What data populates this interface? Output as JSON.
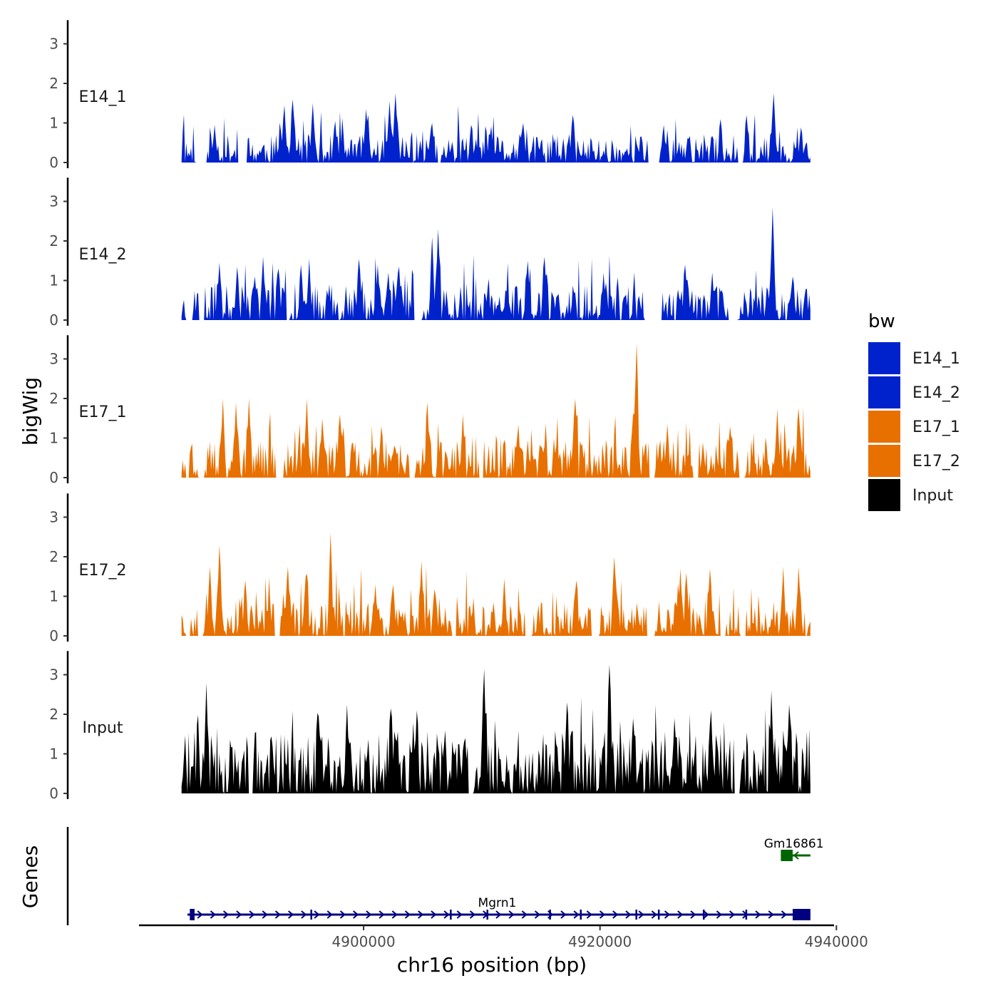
{
  "chart_data": {
    "type": "area",
    "title": "",
    "xlabel": "chr16 position (bp)",
    "ylabel_tracks": "bigWig",
    "ylabel_genes": "Genes",
    "chromosome": "chr16",
    "xlim": [
      4881000,
      4939800
    ],
    "signal_range": [
      4884600,
      4937800
    ],
    "x_ticks": [
      4900000,
      4920000,
      4940000
    ],
    "x_tick_labels": [
      "4900000",
      "4920000",
      "4940000"
    ],
    "ylim": [
      0,
      3.6
    ],
    "y_ticks": [
      0,
      1,
      2,
      3
    ],
    "y_tick_labels": [
      "0",
      "1",
      "2",
      "3"
    ],
    "legend": {
      "title": "bw",
      "position": "right",
      "entries": [
        {
          "label": "E14_1",
          "color": "#0022cc"
        },
        {
          "label": "E14_2",
          "color": "#0022cc"
        },
        {
          "label": "E17_1",
          "color": "#e87000"
        },
        {
          "label": "E17_2",
          "color": "#e87000"
        },
        {
          "label": "Input",
          "color": "#000000"
        }
      ]
    },
    "series": [
      {
        "name": "E14_1",
        "color": "#0022cc",
        "baseline": 0.45,
        "noise": 0.5,
        "seed": 11,
        "gaps": [
          [
            4885850,
            4886700
          ],
          [
            4889400,
            4890100
          ],
          [
            4906300,
            4906500
          ],
          [
            4924100,
            4925000
          ],
          [
            4931700,
            4932000
          ]
        ],
        "peaks": [
          [
            4887400,
            0.95
          ],
          [
            4893300,
            1.45
          ],
          [
            4894000,
            1.6
          ],
          [
            4895700,
            1.5
          ],
          [
            4897600,
            1.05
          ],
          [
            4900200,
            1.35
          ],
          [
            4902200,
            1.55
          ],
          [
            4902700,
            1.75
          ],
          [
            4905800,
            1.0
          ],
          [
            4909100,
            0.95
          ],
          [
            4913500,
            1.0
          ],
          [
            4917700,
            1.2
          ],
          [
            4924800,
            1.3
          ],
          [
            4925400,
            0.85
          ],
          [
            4930200,
            1.1
          ],
          [
            4932400,
            1.2
          ],
          [
            4934700,
            1.75
          ],
          [
            4937000,
            0.75
          ]
        ]
      },
      {
        "name": "E14_2",
        "color": "#0022cc",
        "baseline": 0.55,
        "noise": 0.6,
        "seed": 23,
        "gaps": [
          [
            4885000,
            4885500
          ],
          [
            4886100,
            4886500
          ],
          [
            4893500,
            4893700
          ],
          [
            4904300,
            4904900
          ],
          [
            4923800,
            4925200
          ],
          [
            4930900,
            4931600
          ]
        ],
        "peaks": [
          [
            4887800,
            1.45
          ],
          [
            4889300,
            1.35
          ],
          [
            4890800,
            1.1
          ],
          [
            4891500,
            1.6
          ],
          [
            4892800,
            1.3
          ],
          [
            4894700,
            1.4
          ],
          [
            4895400,
            1.55
          ],
          [
            4899600,
            1.55
          ],
          [
            4901200,
            1.4
          ],
          [
            4902100,
            1.2
          ],
          [
            4903000,
            1.35
          ],
          [
            4905800,
            2.1
          ],
          [
            4906300,
            2.3
          ],
          [
            4913900,
            1.5
          ],
          [
            4915300,
            1.6
          ],
          [
            4920300,
            1.2
          ],
          [
            4927200,
            1.4
          ],
          [
            4929500,
            1.2
          ],
          [
            4934600,
            2.85
          ],
          [
            4936300,
            1.1
          ]
        ]
      },
      {
        "name": "E17_1",
        "color": "#e87000",
        "baseline": 0.6,
        "noise": 0.6,
        "seed": 37,
        "gaps": [
          [
            4885000,
            4885200
          ],
          [
            4886200,
            4886500
          ],
          [
            4892600,
            4893200
          ],
          [
            4903900,
            4904300
          ],
          [
            4909900,
            4910100
          ],
          [
            4924200,
            4924600
          ],
          [
            4927900,
            4928300
          ],
          [
            4931800,
            4932200
          ]
        ],
        "peaks": [
          [
            4888100,
            2.0
          ],
          [
            4889200,
            1.9
          ],
          [
            4890300,
            2.0
          ],
          [
            4893000,
            2.05
          ],
          [
            4895200,
            2.0
          ],
          [
            4896500,
            1.5
          ],
          [
            4898000,
            1.6
          ],
          [
            4901500,
            1.3
          ],
          [
            4904000,
            1.6
          ],
          [
            4905400,
            1.9
          ],
          [
            4908400,
            1.6
          ],
          [
            4913100,
            1.25
          ],
          [
            4917900,
            2.0
          ],
          [
            4922800,
            1.6
          ],
          [
            4923100,
            3.4
          ],
          [
            4925700,
            1.35
          ],
          [
            4931000,
            1.3
          ],
          [
            4935000,
            1.75
          ],
          [
            4936800,
            1.75
          ]
        ]
      },
      {
        "name": "E17_2",
        "color": "#e87000",
        "baseline": 0.55,
        "noise": 0.6,
        "seed": 53,
        "gaps": [
          [
            4885000,
            4885300
          ],
          [
            4886000,
            4886300
          ],
          [
            4892500,
            4892900
          ],
          [
            4907500,
            4907800
          ],
          [
            4913700,
            4914200
          ],
          [
            4919300,
            4919900
          ],
          [
            4924000,
            4924600
          ],
          [
            4930200,
            4930600
          ],
          [
            4931900,
            4932300
          ]
        ],
        "peaks": [
          [
            4887000,
            1.75
          ],
          [
            4887800,
            2.3
          ],
          [
            4890000,
            1.4
          ],
          [
            4893600,
            1.75
          ],
          [
            4895100,
            1.5
          ],
          [
            4897200,
            2.6
          ],
          [
            4901000,
            1.3
          ],
          [
            4902500,
            1.3
          ],
          [
            4904900,
            1.9
          ],
          [
            4907800,
            1.35
          ],
          [
            4911900,
            1.45
          ],
          [
            4918000,
            1.4
          ],
          [
            4921200,
            2.0
          ],
          [
            4926800,
            1.7
          ],
          [
            4927300,
            1.6
          ],
          [
            4929300,
            1.7
          ],
          [
            4935500,
            1.75
          ],
          [
            4936800,
            1.75
          ]
        ]
      },
      {
        "name": "Input",
        "color": "#000000",
        "baseline": 1.0,
        "noise": 0.75,
        "seed": 71,
        "gaps": [
          [
            4890300,
            4890600
          ],
          [
            4908900,
            4909200
          ],
          [
            4931400,
            4931800
          ]
        ],
        "peaks": [
          [
            4886700,
            2.8
          ],
          [
            4896200,
            1.95
          ],
          [
            4898600,
            2.25
          ],
          [
            4902300,
            2.15
          ],
          [
            4904500,
            2.1
          ],
          [
            4908600,
            1.4
          ],
          [
            4910200,
            3.15
          ],
          [
            4917200,
            2.3
          ],
          [
            4920800,
            3.25
          ],
          [
            4922800,
            1.9
          ],
          [
            4926300,
            1.9
          ],
          [
            4929400,
            2.1
          ],
          [
            4934500,
            2.6
          ],
          [
            4936000,
            2.25
          ]
        ]
      }
    ],
    "genes": [
      {
        "name": "Mgrn1",
        "strand": "+",
        "color": "#000080",
        "lane": 2,
        "start": 4885100,
        "end": 4937800,
        "label_x": 4911300,
        "exons": [
          [
            4885300,
            4885700
          ],
          [
            4895500,
            4895600
          ],
          [
            4907300,
            4907400
          ],
          [
            4910400,
            4910500
          ],
          [
            4915700,
            4915800
          ],
          [
            4918300,
            4918400
          ],
          [
            4923000,
            4923100
          ],
          [
            4924900,
            4925000
          ],
          [
            4928700,
            4928800
          ],
          [
            4932300,
            4932400
          ],
          [
            4936300,
            4937800
          ]
        ]
      },
      {
        "name": "Gm16861",
        "strand": "-",
        "color": "#006400",
        "lane": 1,
        "start": 4935300,
        "end": 4937800,
        "label_x": 4936400,
        "exons": [
          [
            4935300,
            4936300
          ]
        ]
      }
    ]
  }
}
